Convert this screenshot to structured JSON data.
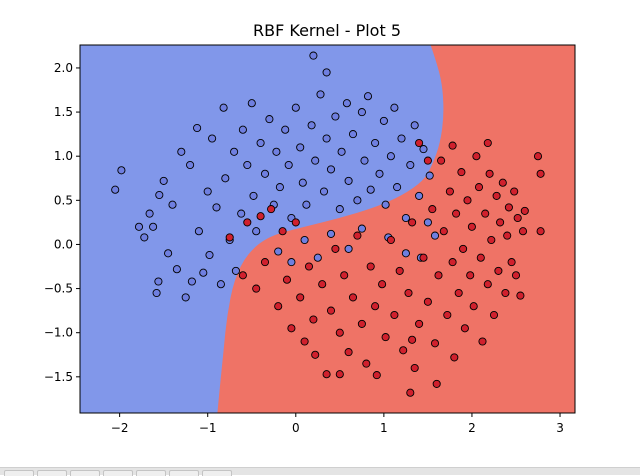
{
  "chart_data": {
    "type": "scatter",
    "title": "RBF Kernel - Plot 5",
    "xlabel": "",
    "ylabel": "",
    "xlim": [
      -2.45,
      3.17
    ],
    "ylim": [
      -1.91,
      2.26
    ],
    "x_ticks": [
      -2,
      -1,
      0,
      1,
      2,
      3
    ],
    "y_ticks": [
      -1.5,
      -1.0,
      -0.5,
      0.0,
      0.5,
      1.0,
      1.5,
      2.0
    ],
    "x_tick_labels": [
      "−2",
      "−1",
      "0",
      "1",
      "2",
      "3"
    ],
    "y_tick_labels": [
      "−1.5",
      "−1.0",
      "−0.5",
      "0.0",
      "0.5",
      "1.0",
      "1.5",
      "2.0"
    ],
    "grid": false,
    "legend": "none",
    "decision_regions": {
      "class_0_color": "#8197ea",
      "class_1_color": "#ef7366",
      "boundary": [
        {
          "x": 1.53,
          "y": 2.26
        },
        {
          "x": 1.62,
          "y": 2.0
        },
        {
          "x": 1.67,
          "y": 1.75
        },
        {
          "x": 1.68,
          "y": 1.45
        },
        {
          "x": 1.64,
          "y": 1.15
        },
        {
          "x": 1.55,
          "y": 0.9
        },
        {
          "x": 1.45,
          "y": 0.72
        },
        {
          "x": 1.2,
          "y": 0.55
        },
        {
          "x": 0.9,
          "y": 0.42
        },
        {
          "x": 0.5,
          "y": 0.3
        },
        {
          "x": 0.1,
          "y": 0.2
        },
        {
          "x": -0.3,
          "y": 0.1
        },
        {
          "x": -0.55,
          "y": -0.1
        },
        {
          "x": -0.7,
          "y": -0.4
        },
        {
          "x": -0.78,
          "y": -0.8
        },
        {
          "x": -0.82,
          "y": -1.2
        },
        {
          "x": -0.86,
          "y": -1.6
        },
        {
          "x": -0.89,
          "y": -1.91
        }
      ]
    },
    "series": [
      {
        "class": 0,
        "color": "#6f7fe0",
        "edge_color": "#000000",
        "points": [
          {
            "x": -2.05,
            "y": 0.62
          },
          {
            "x": -1.98,
            "y": 0.84
          },
          {
            "x": -1.78,
            "y": 0.2
          },
          {
            "x": -1.72,
            "y": 0.08
          },
          {
            "x": -1.66,
            "y": 0.35
          },
          {
            "x": -1.62,
            "y": 0.2
          },
          {
            "x": -1.58,
            "y": -0.55
          },
          {
            "x": -1.56,
            "y": -0.42
          },
          {
            "x": -1.55,
            "y": 0.56
          },
          {
            "x": -1.5,
            "y": 0.72
          },
          {
            "x": -1.45,
            "y": -0.1
          },
          {
            "x": -1.4,
            "y": 0.45
          },
          {
            "x": -1.35,
            "y": -0.28
          },
          {
            "x": -1.3,
            "y": 1.05
          },
          {
            "x": -1.25,
            "y": -0.6
          },
          {
            "x": -1.2,
            "y": 0.9
          },
          {
            "x": -1.18,
            "y": -0.42
          },
          {
            "x": -1.12,
            "y": 1.32
          },
          {
            "x": -1.1,
            "y": 0.15
          },
          {
            "x": -1.05,
            "y": -0.32
          },
          {
            "x": -1.0,
            "y": 0.6
          },
          {
            "x": -0.98,
            "y": -0.12
          },
          {
            "x": -0.95,
            "y": 1.2
          },
          {
            "x": -0.9,
            "y": 0.42
          },
          {
            "x": -0.85,
            "y": -0.45
          },
          {
            "x": -0.82,
            "y": 1.55
          },
          {
            "x": -0.8,
            "y": 0.75
          },
          {
            "x": -0.75,
            "y": 0.05
          },
          {
            "x": -0.7,
            "y": 1.05
          },
          {
            "x": -0.68,
            "y": -0.3
          },
          {
            "x": -0.62,
            "y": 0.35
          },
          {
            "x": -0.6,
            "y": 1.3
          },
          {
            "x": -0.55,
            "y": 0.9
          },
          {
            "x": -0.5,
            "y": 1.6
          },
          {
            "x": -0.48,
            "y": 0.55
          },
          {
            "x": -0.45,
            "y": 0.15
          },
          {
            "x": -0.4,
            "y": 1.15
          },
          {
            "x": -0.35,
            "y": 0.8
          },
          {
            "x": -0.3,
            "y": 1.42
          },
          {
            "x": -0.25,
            "y": 0.45
          },
          {
            "x": -0.22,
            "y": 1.05
          },
          {
            "x": -0.18,
            "y": 0.65
          },
          {
            "x": -0.12,
            "y": 1.3
          },
          {
            "x": -0.08,
            "y": 0.9
          },
          {
            "x": -0.05,
            "y": 0.3
          },
          {
            "x": 0.0,
            "y": 1.55
          },
          {
            "x": 0.05,
            "y": 1.1
          },
          {
            "x": 0.08,
            "y": 0.7
          },
          {
            "x": 0.12,
            "y": 0.45
          },
          {
            "x": 0.18,
            "y": 1.35
          },
          {
            "x": 0.2,
            "y": 2.14
          },
          {
            "x": 0.22,
            "y": 0.95
          },
          {
            "x": 0.28,
            "y": 1.7
          },
          {
            "x": 0.32,
            "y": 0.6
          },
          {
            "x": 0.35,
            "y": 1.2
          },
          {
            "x": 0.35,
            "y": 1.95
          },
          {
            "x": 0.4,
            "y": 0.85
          },
          {
            "x": 0.45,
            "y": 1.45
          },
          {
            "x": 0.5,
            "y": 0.4
          },
          {
            "x": 0.52,
            "y": 1.05
          },
          {
            "x": 0.58,
            "y": 1.6
          },
          {
            "x": 0.6,
            "y": 0.72
          },
          {
            "x": 0.65,
            "y": 1.25
          },
          {
            "x": 0.7,
            "y": 0.5
          },
          {
            "x": 0.75,
            "y": 1.5
          },
          {
            "x": 0.78,
            "y": 0.95
          },
          {
            "x": 0.82,
            "y": 1.68
          },
          {
            "x": 0.85,
            "y": 0.62
          },
          {
            "x": 0.9,
            "y": 1.15
          },
          {
            "x": 0.95,
            "y": 0.8
          },
          {
            "x": 1.0,
            "y": 1.4
          },
          {
            "x": 1.02,
            "y": 0.45
          },
          {
            "x": 1.08,
            "y": 1.0
          },
          {
            "x": 1.12,
            "y": 1.55
          },
          {
            "x": 1.15,
            "y": 0.65
          },
          {
            "x": 1.2,
            "y": 1.2
          },
          {
            "x": 1.25,
            "y": 0.3
          },
          {
            "x": 1.3,
            "y": 0.9
          },
          {
            "x": 1.35,
            "y": 1.35
          },
          {
            "x": 1.4,
            "y": 0.55
          },
          {
            "x": 1.45,
            "y": 1.08
          },
          {
            "x": 1.5,
            "y": 0.25
          },
          {
            "x": 1.52,
            "y": 0.78
          },
          {
            "x": 1.58,
            "y": 0.1
          },
          {
            "x": -0.2,
            "y": -0.08
          },
          {
            "x": 0.1,
            "y": 0.05
          },
          {
            "x": 0.4,
            "y": 0.12
          },
          {
            "x": 0.75,
            "y": 0.18
          },
          {
            "x": 1.05,
            "y": 0.08
          },
          {
            "x": 1.25,
            "y": -0.1
          },
          {
            "x": 1.42,
            "y": -0.15
          },
          {
            "x": 0.6,
            "y": -0.05
          },
          {
            "x": -0.05,
            "y": -0.2
          },
          {
            "x": 0.25,
            "y": -0.15
          }
        ]
      },
      {
        "class": 1,
        "color": "#d0202d",
        "edge_color": "#000000",
        "points": [
          {
            "x": -0.75,
            "y": 0.08
          },
          {
            "x": -0.6,
            "y": -0.35
          },
          {
            "x": -0.55,
            "y": 0.25
          },
          {
            "x": -0.45,
            "y": -0.5
          },
          {
            "x": -0.4,
            "y": 0.32
          },
          {
            "x": -0.35,
            "y": -0.2
          },
          {
            "x": -0.28,
            "y": 0.4
          },
          {
            "x": -0.2,
            "y": -0.7
          },
          {
            "x": -0.15,
            "y": 0.15
          },
          {
            "x": -0.1,
            "y": -0.4
          },
          {
            "x": -0.05,
            "y": -0.95
          },
          {
            "x": 0.0,
            "y": 0.25
          },
          {
            "x": 0.05,
            "y": -0.6
          },
          {
            "x": 0.1,
            "y": -1.1
          },
          {
            "x": 0.15,
            "y": -0.25
          },
          {
            "x": 0.2,
            "y": -0.85
          },
          {
            "x": 0.22,
            "y": -1.25
          },
          {
            "x": 0.3,
            "y": -0.45
          },
          {
            "x": 0.35,
            "y": -1.47
          },
          {
            "x": 0.4,
            "y": -0.75
          },
          {
            "x": 0.45,
            "y": -0.05
          },
          {
            "x": 0.5,
            "y": -1.0
          },
          {
            "x": 0.55,
            "y": -0.35
          },
          {
            "x": 0.6,
            "y": -1.22
          },
          {
            "x": 0.65,
            "y": -0.6
          },
          {
            "x": 0.7,
            "y": 0.1
          },
          {
            "x": 0.75,
            "y": -0.9
          },
          {
            "x": 0.8,
            "y": -1.35
          },
          {
            "x": 0.85,
            "y": -0.25
          },
          {
            "x": 0.9,
            "y": -0.7
          },
          {
            "x": 0.92,
            "y": -1.48
          },
          {
            "x": 0.98,
            "y": -0.45
          },
          {
            "x": 1.02,
            "y": -1.05
          },
          {
            "x": 1.08,
            "y": 0.05
          },
          {
            "x": 1.12,
            "y": -0.8
          },
          {
            "x": 1.18,
            "y": -0.3
          },
          {
            "x": 1.22,
            "y": -1.2
          },
          {
            "x": 1.28,
            "y": -0.55
          },
          {
            "x": 1.32,
            "y": 0.25
          },
          {
            "x": 1.35,
            "y": -1.4
          },
          {
            "x": 1.4,
            "y": -0.9
          },
          {
            "x": 1.45,
            "y": -0.15
          },
          {
            "x": 1.5,
            "y": -0.65
          },
          {
            "x": 1.55,
            "y": 0.4
          },
          {
            "x": 1.58,
            "y": -1.12
          },
          {
            "x": 1.6,
            "y": -1.58
          },
          {
            "x": 1.62,
            "y": -0.35
          },
          {
            "x": 1.65,
            "y": 0.95
          },
          {
            "x": 1.68,
            "y": 0.15
          },
          {
            "x": 1.72,
            "y": -0.8
          },
          {
            "x": 1.75,
            "y": 0.6
          },
          {
            "x": 1.78,
            "y": -0.2
          },
          {
            "x": 1.8,
            "y": -1.28
          },
          {
            "x": 1.82,
            "y": 0.35
          },
          {
            "x": 1.85,
            "y": -0.55
          },
          {
            "x": 1.88,
            "y": 0.82
          },
          {
            "x": 1.9,
            "y": -0.05
          },
          {
            "x": 1.92,
            "y": -0.95
          },
          {
            "x": 1.95,
            "y": 0.5
          },
          {
            "x": 1.98,
            "y": -0.35
          },
          {
            "x": 2.0,
            "y": 0.2
          },
          {
            "x": 2.02,
            "y": -0.7
          },
          {
            "x": 2.05,
            "y": 1.0
          },
          {
            "x": 2.08,
            "y": 0.65
          },
          {
            "x": 2.1,
            "y": -0.15
          },
          {
            "x": 2.12,
            "y": -1.1
          },
          {
            "x": 2.15,
            "y": 0.35
          },
          {
            "x": 2.18,
            "y": -0.45
          },
          {
            "x": 2.2,
            "y": 0.8
          },
          {
            "x": 2.22,
            "y": 0.05
          },
          {
            "x": 2.25,
            "y": -0.8
          },
          {
            "x": 2.28,
            "y": 0.55
          },
          {
            "x": 2.3,
            "y": -0.3
          },
          {
            "x": 2.32,
            "y": 0.25
          },
          {
            "x": 2.35,
            "y": 0.7
          },
          {
            "x": 2.38,
            "y": -0.55
          },
          {
            "x": 2.4,
            "y": 0.1
          },
          {
            "x": 2.42,
            "y": 0.42
          },
          {
            "x": 2.45,
            "y": -0.2
          },
          {
            "x": 2.48,
            "y": 0.6
          },
          {
            "x": 2.5,
            "y": -0.35
          },
          {
            "x": 2.52,
            "y": 0.3
          },
          {
            "x": 2.55,
            "y": -0.58
          },
          {
            "x": 2.58,
            "y": 0.15
          },
          {
            "x": 2.6,
            "y": 0.38
          },
          {
            "x": 2.75,
            "y": 1.0
          },
          {
            "x": 2.78,
            "y": 0.8
          },
          {
            "x": 2.78,
            "y": 0.15
          },
          {
            "x": 1.4,
            "y": 1.15
          },
          {
            "x": 1.5,
            "y": 0.95
          },
          {
            "x": 1.78,
            "y": 1.12
          },
          {
            "x": 2.18,
            "y": 1.15
          },
          {
            "x": 1.32,
            "y": -1.08
          },
          {
            "x": 0.5,
            "y": -1.47
          },
          {
            "x": 1.3,
            "y": -1.68
          }
        ]
      }
    ]
  },
  "colors": {
    "class_0_region": "#8197ea",
    "class_1_region": "#ef7366",
    "axis": "#000000"
  }
}
